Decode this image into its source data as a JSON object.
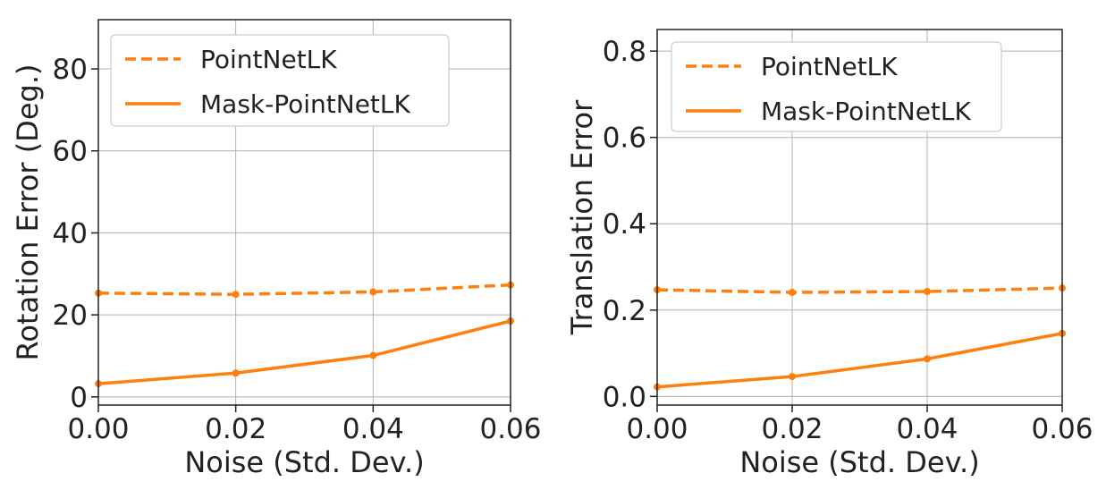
{
  "chart_data": [
    {
      "type": "line",
      "xlabel": "Noise (Std. Dev.)",
      "ylabel": "Rotation Error (Deg.)",
      "x": [
        0.0,
        0.02,
        0.04,
        0.06
      ],
      "xticks": [
        "0.00",
        "0.02",
        "0.04",
        "0.06"
      ],
      "xlim": [
        0.0,
        0.06
      ],
      "yticks": [
        "0",
        "20",
        "40",
        "60",
        "80"
      ],
      "ytick_values": [
        0,
        20,
        40,
        60,
        80
      ],
      "ylim": [
        -2,
        92
      ],
      "grid": true,
      "legend": "top-left",
      "series": [
        {
          "name": "PointNetLK",
          "style": "dashed",
          "color": "#ff7f0e",
          "values": [
            25.3,
            25.0,
            25.6,
            27.3
          ]
        },
        {
          "name": "Mask-PointNetLK",
          "style": "solid",
          "color": "#ff7f0e",
          "values": [
            3.2,
            5.8,
            10.1,
            18.5
          ]
        }
      ]
    },
    {
      "type": "line",
      "xlabel": "Noise (Std. Dev.)",
      "ylabel": "Translation Error",
      "x": [
        0.0,
        0.02,
        0.04,
        0.06
      ],
      "xticks": [
        "0.00",
        "0.02",
        "0.04",
        "0.06"
      ],
      "xlim": [
        0.0,
        0.06
      ],
      "yticks": [
        "0.0",
        "0.2",
        "0.4",
        "0.6",
        "0.8"
      ],
      "ytick_values": [
        0.0,
        0.2,
        0.4,
        0.6,
        0.8
      ],
      "ylim": [
        -0.02,
        0.85
      ],
      "grid": true,
      "legend": "top-left",
      "series": [
        {
          "name": "PointNetLK",
          "style": "dashed",
          "color": "#ff7f0e",
          "values": [
            0.247,
            0.241,
            0.243,
            0.251
          ]
        },
        {
          "name": "Mask-PointNetLK",
          "style": "solid",
          "color": "#ff7f0e",
          "values": [
            0.022,
            0.046,
            0.087,
            0.146
          ]
        }
      ]
    }
  ]
}
